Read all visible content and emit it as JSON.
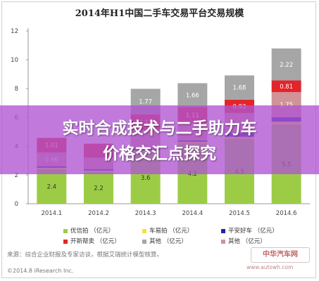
{
  "chart_data": {
    "type": "bar",
    "title": "2014年H1中国二手车交易平台交易规模",
    "categories": [
      "2014.1",
      "2014.2",
      "2014.3",
      "2014.4",
      "2014.5",
      "2014.6"
    ],
    "ylim": [
      0,
      12
    ],
    "y_ticks": [
      0,
      2,
      4,
      6,
      8,
      10,
      12
    ],
    "grid": false,
    "legend_position": "bottom",
    "stacked": true,
    "series": [
      {
        "name": "优信拍（亿元）",
        "color": "#9ccc45",
        "values": [
          2.4,
          2.2,
          3.6,
          4.2,
          4.5,
          5.5
        ],
        "labels": [
          "2.4",
          "2.2",
          "3.6",
          "4.2",
          "4.5",
          "5.5"
        ]
      },
      {
        "name": "车易拍（亿元）",
        "color": "#f4e23c",
        "values": [
          0.1,
          0.1,
          0.1,
          0.1,
          0.15,
          0.2
        ],
        "labels": [
          "",
          "",
          "",
          "",
          "",
          ""
        ]
      },
      {
        "name": "平安好车（亿元）",
        "color": "#1f22b0",
        "values": [
          0.1,
          0.1,
          0.1,
          0.1,
          0.25,
          0.3
        ],
        "labels": [
          "",
          "",
          "",
          "",
          "",
          ""
        ]
      },
      {
        "name": "其他（亿元）",
        "color": "#cf9398",
        "values": [
          0.96,
          0.8,
          1.3,
          1.2,
          1.4,
          1.75
        ],
        "labels": [
          "0.96",
          "",
          "",
          "",
          "",
          "1.75"
        ]
      },
      {
        "name": "开新帮卖（亿元）",
        "color": "#e3242b",
        "values": [
          1.01,
          0.97,
          1.11,
          1.11,
          0.93,
          0.81
        ],
        "labels": [
          "1.01",
          "",
          "1.11",
          "1.11",
          "0.93",
          "0.81"
        ]
      },
      {
        "name": "其他（亿元）",
        "color": "#a6a6a6",
        "values": [
          0,
          0,
          1.77,
          1.66,
          1.68,
          2.22
        ],
        "labels": [
          "",
          "",
          "1.77",
          "1.66",
          "1.68",
          "2.22"
        ]
      }
    ]
  },
  "legend": [
    {
      "label": "优信拍 （亿元）",
      "color": "#9ccc45"
    },
    {
      "label": "车易拍 （亿元）",
      "color": "#f4e23c"
    },
    {
      "label": "平安好车 （亿元）",
      "color": "#1f22b0"
    },
    {
      "label": "开新帮卖 （亿元）",
      "color": "#e3242b"
    },
    {
      "label": "其他 （亿元）",
      "color": "#a6a6a6"
    },
    {
      "label": "其他 （亿元）",
      "color": "#cf9398"
    }
  ],
  "overlay": {
    "line1": "实时合成技术与二手助力车",
    "line2": "价格交汇点探究"
  },
  "footer": {
    "source": "来源：综合企业财报及专家访谈，根据艾瑞统计模型核算。",
    "copyright": "©2014.8 iResearch Inc.",
    "watermark": "中华汽车网",
    "watermark_url": "www.autowh.com"
  }
}
